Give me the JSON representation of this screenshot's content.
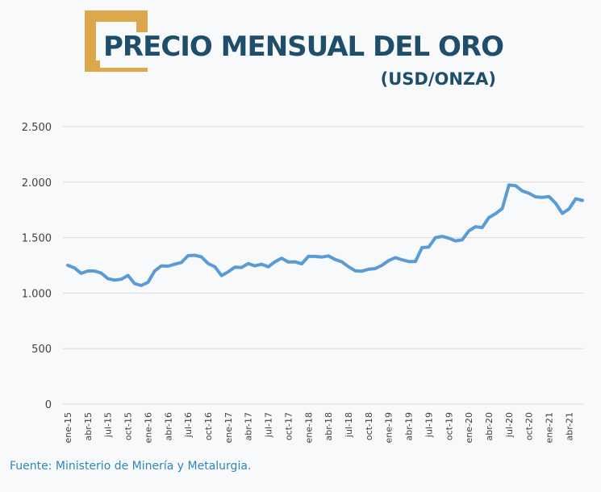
{
  "header": {
    "title": "PRECIO MENSUAL DEL ORO",
    "subtitle": "(USD/ONZA)"
  },
  "source": "Fuente: Ministerio de Minería y Metalurgia.",
  "colors": {
    "line": "#5b9bd5",
    "title": "#1f4e6b",
    "accent": "#dba84c",
    "source": "#2f86b4",
    "grid": "#d9d9d9"
  },
  "chart_data": {
    "type": "line",
    "title": "PRECIO MENSUAL DEL ORO",
    "subtitle": "(USD/ONZA)",
    "xlabel": "",
    "ylabel": "",
    "ylim": [
      0,
      2500
    ],
    "yticks": [
      0,
      500,
      1000,
      1500,
      2000,
      2500
    ],
    "ytick_labels": [
      "0",
      "500",
      "1.000",
      "1.500",
      "2.000",
      "2.500"
    ],
    "grid": true,
    "legend": "none",
    "x_tick_labels": [
      "ene-15",
      "abr-15",
      "jul-15",
      "oct-15",
      "ene-16",
      "abr-16",
      "jul-16",
      "oct-16",
      "ene-17",
      "abr-17",
      "jul-17",
      "oct-17",
      "ene-18",
      "abr-18",
      "jul-18",
      "oct-18",
      "ene-19",
      "abr-19",
      "jul-19",
      "oct-19",
      "ene-20",
      "abr-20",
      "jul-20",
      "oct-20",
      "ene-21",
      "abr-21"
    ],
    "x_tick_step": 3,
    "series": [
      {
        "values": [
          1251,
          1227,
          1178,
          1199,
          1199,
          1181,
          1131,
          1117,
          1125,
          1159,
          1086,
          1068,
          1097,
          1199,
          1246,
          1243,
          1260,
          1276,
          1337,
          1341,
          1326,
          1266,
          1238,
          1158,
          1192,
          1234,
          1231,
          1266,
          1246,
          1260,
          1237,
          1283,
          1315,
          1280,
          1282,
          1264,
          1331,
          1331,
          1325,
          1335,
          1303,
          1282,
          1238,
          1201,
          1198,
          1215,
          1221,
          1250,
          1292,
          1320,
          1300,
          1285,
          1284,
          1410,
          1414,
          1499,
          1511,
          1495,
          1471,
          1480,
          1560,
          1598,
          1591,
          1680,
          1716,
          1762,
          1974,
          1968,
          1921,
          1900,
          1867,
          1863,
          1870,
          1808,
          1718,
          1759,
          1850,
          1835
        ]
      }
    ]
  }
}
